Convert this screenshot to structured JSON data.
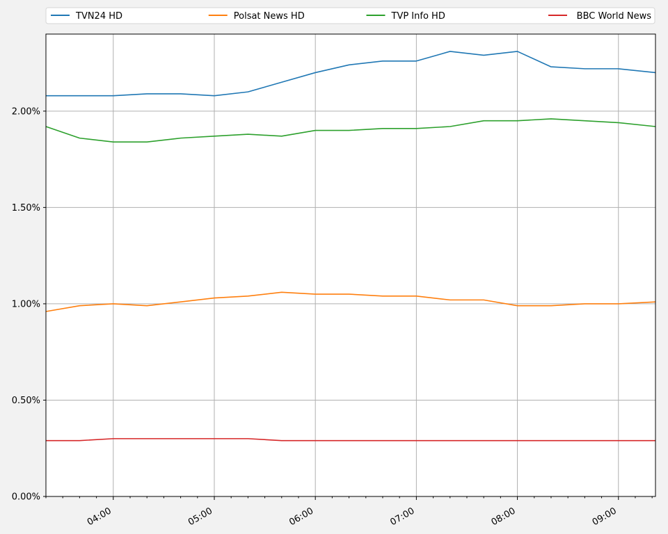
{
  "chart_data": {
    "type": "line",
    "title": "",
    "xlabel": "",
    "ylabel": "",
    "ylim": [
      0,
      0.024
    ],
    "y_tick_values": [
      0,
      0.005,
      0.01,
      0.015,
      0.02
    ],
    "y_tick_labels": [
      "0.00%",
      "0.50%",
      "1.00%",
      "1.50%",
      "2.00%"
    ],
    "xlim": [
      "03:20",
      "09:22"
    ],
    "x_tick_values": [
      "04:00",
      "05:00",
      "06:00",
      "07:00",
      "08:00",
      "09:00"
    ],
    "x_tick_labels": [
      "04:00",
      "05:00",
      "06:00",
      "07:00",
      "08:00",
      "09:00"
    ],
    "grid": true,
    "legend_position": "top",
    "x": [
      "03:20",
      "03:40",
      "04:00",
      "04:20",
      "04:40",
      "05:00",
      "05:20",
      "05:40",
      "06:00",
      "06:20",
      "06:40",
      "07:00",
      "07:20",
      "07:40",
      "08:00",
      "08:20",
      "08:40",
      "09:00",
      "09:22"
    ],
    "series": [
      {
        "name": "TVN24 HD",
        "color": "#1f77b4",
        "values": [
          0.0208,
          0.0208,
          0.0208,
          0.0209,
          0.0209,
          0.0208,
          0.021,
          0.0215,
          0.022,
          0.0224,
          0.0226,
          0.0226,
          0.0231,
          0.0229,
          0.0231,
          0.0223,
          0.0222,
          0.0222,
          0.022
        ]
      },
      {
        "name": "Polsat News HD",
        "color": "#ff7f0e",
        "values": [
          0.0096,
          0.0099,
          0.01,
          0.0099,
          0.0101,
          0.0103,
          0.0104,
          0.0106,
          0.0105,
          0.0105,
          0.0104,
          0.0104,
          0.0102,
          0.0102,
          0.0099,
          0.0099,
          0.01,
          0.01,
          0.0101
        ]
      },
      {
        "name": "TVP Info HD",
        "color": "#2ca02c",
        "values": [
          0.0192,
          0.0186,
          0.0184,
          0.0184,
          0.0186,
          0.0187,
          0.0188,
          0.0187,
          0.019,
          0.019,
          0.0191,
          0.0191,
          0.0192,
          0.0195,
          0.0195,
          0.0196,
          0.0195,
          0.0194,
          0.0192
        ]
      },
      {
        "name": "BBC World News",
        "color": "#d62728",
        "values": [
          0.0029,
          0.0029,
          0.003,
          0.003,
          0.003,
          0.003,
          0.003,
          0.0029,
          0.0029,
          0.0029,
          0.0029,
          0.0029,
          0.0029,
          0.0029,
          0.0029,
          0.0029,
          0.0029,
          0.0029,
          0.0029
        ]
      }
    ]
  }
}
